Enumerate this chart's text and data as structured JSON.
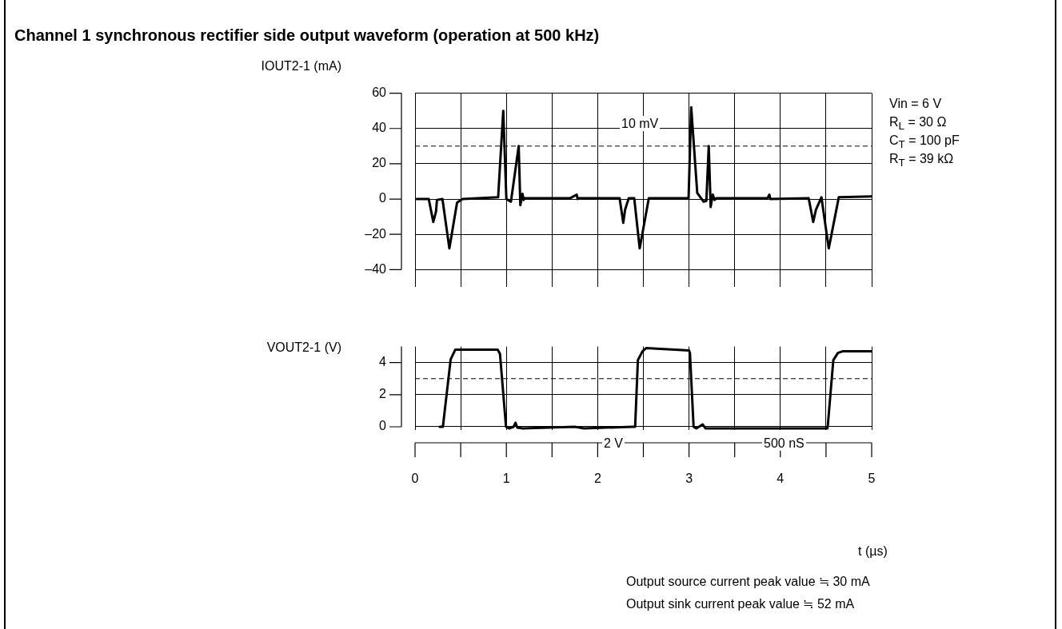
{
  "chart_data": [
    {
      "type": "line",
      "title": "Channel 1 synchronous rectifier side output waveform (operation at 500 kHz)",
      "ylabel": "IOUT2-1 (mA)",
      "xlim": [
        0,
        5
      ],
      "xticks": [
        0,
        {
          "value": 0.5,
          "label": null
        },
        1,
        {
          "value": 1.5,
          "label": null
        },
        2,
        {
          "value": 2.5,
          "label": null
        },
        3,
        {
          "value": 3.5,
          "label": null
        },
        4,
        {
          "value": 4.5,
          "label": null
        },
        5
      ],
      "ylim": [
        -50,
        60
      ],
      "yticks": [
        {
          "value": -40,
          "label": "–40"
        },
        {
          "value": -20,
          "label": "–20"
        },
        0,
        20,
        40,
        60
      ],
      "grid": true,
      "tick_labels": "y",
      "ref_lines": [
        {
          "axis": "y",
          "value": 30,
          "color": "#000000",
          "line_style": "dashed"
        }
      ],
      "annotations": [
        "10 mV",
        "Vin = 6 V",
        "R$_{L}$ = 30 Ω",
        "C$_{T}$ = 100 pF",
        "R$_{T}$ = 39 kΩ"
      ],
      "series": [
        {
          "color": "#000000",
          "x": [
            0.02,
            0.15,
            0.2,
            0.23,
            0.24,
            0.3,
            0.376,
            0.46,
            0.52,
            0.91,
            0.966,
            1.0,
            1.05,
            1.135,
            1.153,
            1.176,
            1.19,
            1.2,
            1.7,
            1.77,
            1.78,
            1.79,
            2.24,
            2.28,
            2.3,
            2.34,
            2.4,
            2.46,
            2.56,
            2.995,
            3.024,
            3.09,
            3.16,
            3.19,
            3.216,
            3.237,
            3.26,
            3.28,
            3.3,
            3.86,
            3.88,
            3.89,
            4.31,
            4.36,
            4.39,
            4.45,
            4.53,
            4.64,
            5.0
          ],
          "values": [
            0,
            0,
            -13,
            -7,
            -0.5,
            0,
            -28,
            -2,
            0,
            1,
            50,
            0,
            -1.5,
            30,
            -3.5,
            3,
            -0.5,
            0.5,
            0.5,
            2.5,
            0,
            0.5,
            0.5,
            -13.5,
            -6,
            0.5,
            0.5,
            -28,
            0.5,
            0.5,
            52,
            3.5,
            -1.5,
            -1,
            30,
            -4.5,
            2.5,
            -0.5,
            0.5,
            0.5,
            2.5,
            0,
            0.5,
            -13,
            -6,
            1,
            -28,
            1,
            1.5
          ]
        }
      ]
    },
    {
      "type": "line",
      "ylabel": "VOUT2-1 (V)",
      "xlabel": "t (µs)",
      "xlim": [
        0,
        5
      ],
      "xticks": [
        0,
        {
          "value": 0.5,
          "label": null
        },
        1,
        {
          "value": 1.5,
          "label": null
        },
        2,
        {
          "value": 2.5,
          "label": null
        },
        3,
        {
          "value": 3.5,
          "label": null
        },
        4,
        {
          "value": 4.5,
          "label": null
        },
        5
      ],
      "ylim": [
        -0.2,
        5
      ],
      "yticks": [
        0,
        2,
        4
      ],
      "grid": true,
      "ref_lines": [
        {
          "axis": "y",
          "value": 3,
          "color": "#000000",
          "line_style": "dashed"
        }
      ],
      "annotations": [
        "2 V",
        "500 nS",
        "Output source current peak value ≒ 30 mA",
        "Output sink current peak value ≒ 52 mA"
      ],
      "series": [
        {
          "color": "#000000",
          "x": [
            0.27,
            0.305,
            0.39,
            0.44,
            0.905,
            0.93,
            0.996,
            1.03,
            1.08,
            1.1,
            1.12,
            1.18,
            1.75,
            1.85,
            2.38,
            2.41,
            2.44,
            2.49,
            2.53,
            3.0,
            3.01,
            3.05,
            3.08,
            3.15,
            3.18,
            4.515,
            4.52,
            4.58,
            4.63,
            4.68,
            5.0
          ],
          "values": [
            0,
            0,
            4.2,
            4.8,
            4.8,
            4.55,
            0,
            -0.1,
            0,
            0.25,
            -0.05,
            -0.1,
            0,
            -0.1,
            0,
            0,
            4.15,
            4.7,
            4.9,
            4.75,
            4.6,
            0,
            -0.1,
            0.15,
            -0.1,
            -0.1,
            0.1,
            4.15,
            4.6,
            4.7,
            4.7
          ]
        }
      ]
    }
  ]
}
